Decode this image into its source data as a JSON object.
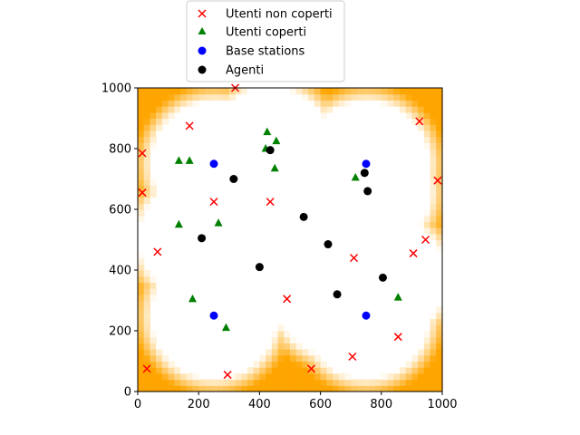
{
  "chart_data": {
    "type": "scatter",
    "title": "",
    "xlabel": "",
    "ylabel": "",
    "xlim": [
      0,
      1000
    ],
    "ylim": [
      0,
      1000
    ],
    "xticks": [
      0,
      200,
      400,
      600,
      800,
      1000
    ],
    "yticks": [
      0,
      200,
      400,
      600,
      800,
      1000
    ],
    "grid": false,
    "legend_position": "top-center",
    "background_heatmap": {
      "description_colors": {
        "uncovered": "#FFA500",
        "covered": "#FFFFFF"
      }
    },
    "series": [
      {
        "name": "Utenti non coperti",
        "marker": "x",
        "color": "#ff0000",
        "points": [
          [
            15,
            785
          ],
          [
            15,
            655
          ],
          [
            65,
            460
          ],
          [
            170,
            875
          ],
          [
            250,
            625
          ],
          [
            320,
            1000
          ],
          [
            435,
            625
          ],
          [
            490,
            305
          ],
          [
            570,
            75
          ],
          [
            705,
            115
          ],
          [
            710,
            440
          ],
          [
            855,
            180
          ],
          [
            905,
            455
          ],
          [
            925,
            890
          ],
          [
            945,
            500
          ],
          [
            985,
            695
          ],
          [
            30,
            75
          ],
          [
            295,
            55
          ]
        ]
      },
      {
        "name": "Utenti coperti",
        "marker": "triangle",
        "color": "#008000",
        "points": [
          [
            135,
            760
          ],
          [
            170,
            760
          ],
          [
            135,
            550
          ],
          [
            265,
            555
          ],
          [
            180,
            305
          ],
          [
            290,
            210
          ],
          [
            425,
            855
          ],
          [
            420,
            800
          ],
          [
            455,
            825
          ],
          [
            450,
            735
          ],
          [
            715,
            705
          ],
          [
            855,
            310
          ]
        ]
      },
      {
        "name": "Base stations",
        "marker": "circle",
        "color": "#0000ff",
        "points": [
          [
            250,
            750
          ],
          [
            750,
            750
          ],
          [
            250,
            250
          ],
          [
            750,
            250
          ]
        ]
      },
      {
        "name": "Agenti",
        "marker": "circle",
        "color": "#000000",
        "points": [
          [
            435,
            795
          ],
          [
            315,
            700
          ],
          [
            210,
            505
          ],
          [
            400,
            410
          ],
          [
            545,
            575
          ],
          [
            625,
            485
          ],
          [
            655,
            320
          ],
          [
            745,
            720
          ],
          [
            755,
            660
          ],
          [
            805,
            375
          ]
        ]
      }
    ]
  },
  "legend": {
    "items": [
      {
        "label": "Utenti non coperti"
      },
      {
        "label": "Utenti coperti"
      },
      {
        "label": "Base stations"
      },
      {
        "label": "Agenti"
      }
    ]
  }
}
